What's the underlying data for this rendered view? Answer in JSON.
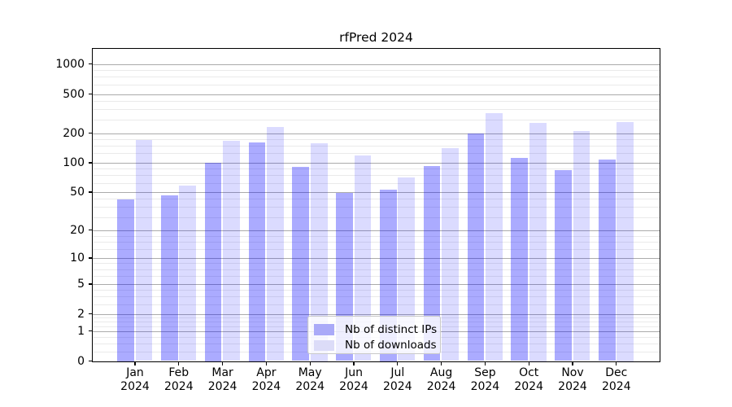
{
  "figure": {
    "title": "rfPred 2024"
  },
  "chart_data": {
    "type": "bar",
    "title": "rfPred 2024",
    "categories": [
      "Jan 2024",
      "Feb 2024",
      "Mar 2024",
      "Apr 2024",
      "May 2024",
      "Jun 2024",
      "Jul 2024",
      "Aug 2024",
      "Sep 2024",
      "Oct 2024",
      "Nov 2024",
      "Dec 2024"
    ],
    "series": [
      {
        "name": "Nb of distinct IPs",
        "values": [
          42,
          46,
          100,
          161,
          91,
          49,
          53,
          93,
          200,
          112,
          84,
          107
        ],
        "bar_color": "#0000ff",
        "bar_alpha": 0.33,
        "legend_color": "#aaaaf8"
      },
      {
        "name": "Nb of downloads",
        "values": [
          170,
          58,
          166,
          233,
          158,
          118,
          71,
          142,
          318,
          257,
          210,
          262
        ],
        "bar_color": "#0000ff",
        "bar_alpha": 0.14,
        "legend_color": "#dcdcf8"
      }
    ],
    "xlabel": "",
    "ylabel": "",
    "yscale": "log10(value+1)",
    "yticks": [
      0,
      1,
      2,
      5,
      10,
      20,
      50,
      100,
      200,
      500,
      1000
    ],
    "ylim": [
      0,
      1400
    ],
    "grid": "horizontal major+minor",
    "legend_position": "lower center",
    "colors": {
      "background": "#ffffff",
      "axis": "#000000",
      "text": "#000000",
      "grid_major": "#ababab",
      "grid_minor": "#eaeaea"
    }
  }
}
